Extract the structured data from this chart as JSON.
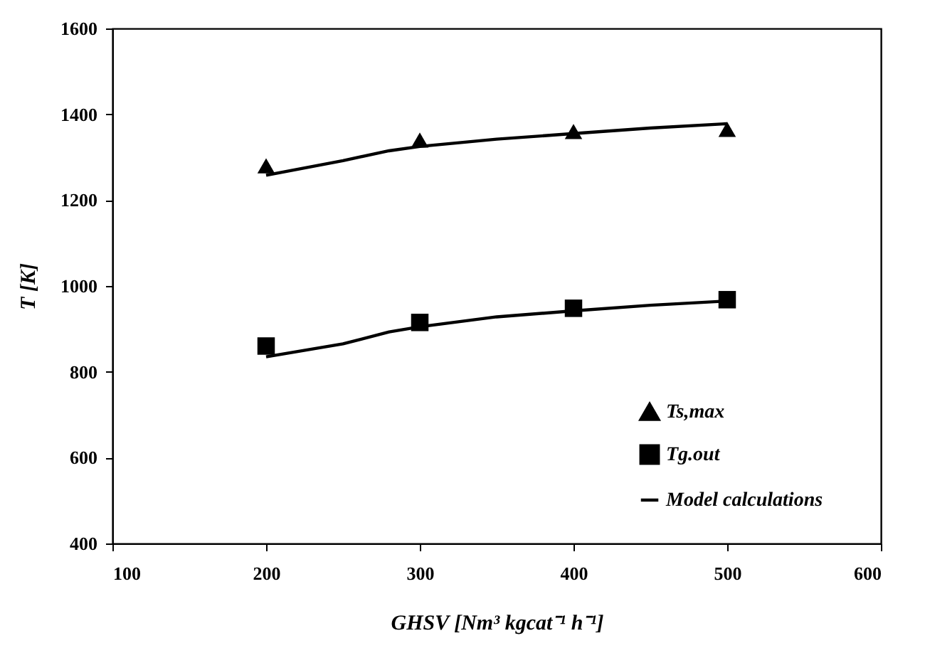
{
  "chart_data": {
    "type": "scatter",
    "xlabel": "GHSV [Nm³ kgcat⁻¹ h⁻¹]",
    "ylabel": "T [K]",
    "xlim": [
      100,
      600
    ],
    "xticks": [
      100,
      200,
      300,
      400,
      500,
      600
    ],
    "ylim": [
      400,
      1600
    ],
    "yticks": [
      400,
      600,
      800,
      1000,
      1200,
      1400,
      1600
    ],
    "grid": false,
    "legend": "bottom right",
    "series": [
      {
        "name": "Ts,max",
        "marker": "triangle",
        "color": "#000000",
        "x": [
          200,
          300,
          400,
          500
        ],
        "values": [
          1280,
          1340,
          1360,
          1365
        ]
      },
      {
        "name": "Tg.out",
        "marker": "square",
        "color": "#000000",
        "x": [
          200,
          300,
          400,
          500
        ],
        "values": [
          860,
          915,
          948,
          968
        ]
      },
      {
        "name": "Model calculations",
        "type": "line",
        "line_style": "solid",
        "color": "#000000",
        "x": [
          200,
          250,
          280,
          300,
          350,
          400,
          450,
          500
        ],
        "values": [
          1258,
          1292,
          1315,
          1325,
          1342,
          1355,
          1368,
          1378
        ]
      },
      {
        "type": "line",
        "line_style": "solid",
        "color": "#000000",
        "x": [
          200,
          250,
          280,
          300,
          350,
          400,
          450,
          500
        ],
        "values": [
          835,
          865,
          893,
          905,
          928,
          942,
          955,
          965
        ]
      }
    ]
  }
}
